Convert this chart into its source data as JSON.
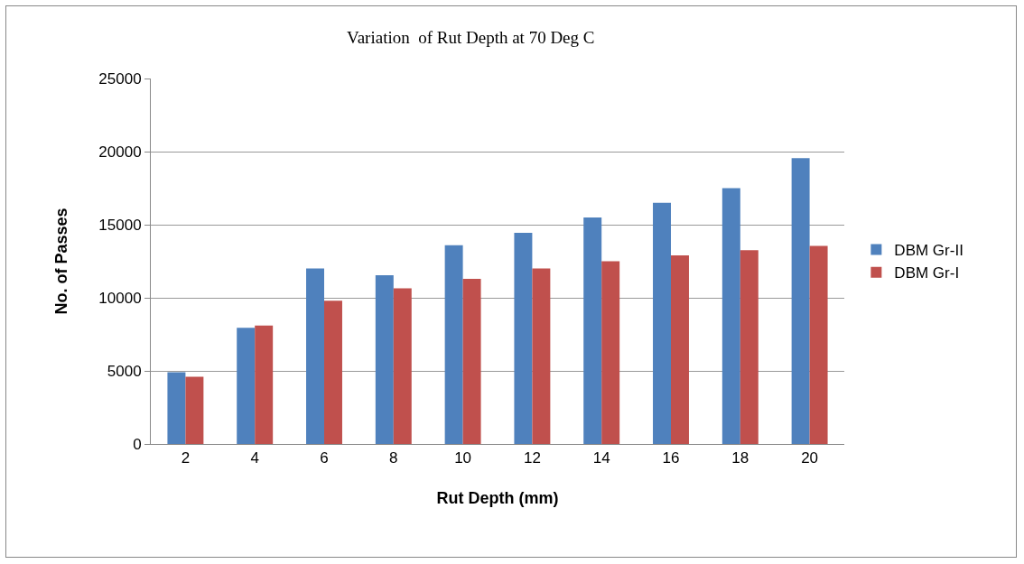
{
  "chart_data": {
    "type": "bar",
    "title": "Variation  of Rut Depth at 70 Deg C",
    "xlabel": "Rut Depth (mm)",
    "ylabel": "No. of Passes",
    "categories": [
      "2",
      "4",
      "6",
      "8",
      "10",
      "12",
      "14",
      "16",
      "18",
      "20"
    ],
    "series": [
      {
        "name": "DBM Gr-II",
        "color": "#4f81bd",
        "values": [
          4900,
          7950,
          12000,
          11550,
          13600,
          14450,
          15500,
          16500,
          17500,
          19550
        ]
      },
      {
        "name": "DBM Gr-I",
        "color": "#c0504d",
        "values": [
          4600,
          8100,
          9800,
          10650,
          11300,
          12000,
          12500,
          12900,
          13250,
          13550
        ]
      }
    ],
    "ylim": [
      0,
      25000
    ],
    "yticks": [
      0,
      5000,
      10000,
      15000,
      20000,
      25000
    ],
    "grid": "y",
    "legend": "right"
  }
}
